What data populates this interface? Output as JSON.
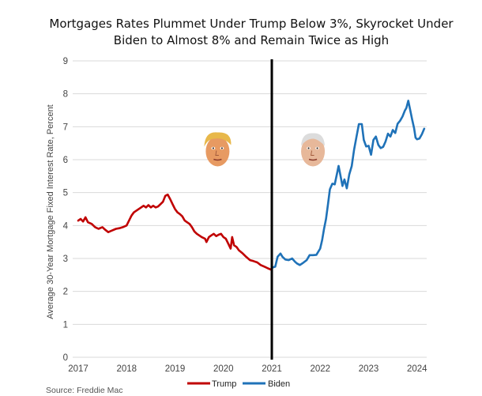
{
  "chart_data": {
    "type": "line",
    "title_lines": [
      "Mortgages Rates Plummet Under Trump Below 3%, Skyrocket Under",
      "Biden to Almost 8% and Remain Twice as High"
    ],
    "ylabel": "Average 30-Year Mortgage Fixed Interest Rate, Percent",
    "xlabel": "",
    "xlim": [
      2017,
      2024.2
    ],
    "ylim": [
      0,
      9
    ],
    "x_ticks": [
      2017,
      2018,
      2019,
      2020,
      2021,
      2022,
      2023,
      2024
    ],
    "x_tick_labels": [
      "2017",
      "2018",
      "2019",
      "2020",
      "2021",
      "2022",
      "2023",
      "2024"
    ],
    "y_ticks": [
      0,
      1,
      2,
      3,
      4,
      5,
      6,
      7,
      8,
      9
    ],
    "y_tick_labels": [
      "0",
      "1",
      "2",
      "3",
      "4",
      "5",
      "6",
      "7",
      "8",
      "9"
    ],
    "grid": true,
    "divider_x": 2021.0,
    "source": "Source: Freddie Mac",
    "annotations": [
      {
        "name": "trump-face",
        "x": 2019.88,
        "y": 6.3
      },
      {
        "name": "biden-face",
        "x": 2021.85,
        "y": 6.3
      }
    ],
    "series": [
      {
        "name": "Trump",
        "color": "#c00000",
        "points": [
          [
            2017.0,
            4.15
          ],
          [
            2017.05,
            4.2
          ],
          [
            2017.1,
            4.12
          ],
          [
            2017.15,
            4.25
          ],
          [
            2017.2,
            4.1
          ],
          [
            2017.28,
            4.05
          ],
          [
            2017.35,
            3.95
          ],
          [
            2017.42,
            3.9
          ],
          [
            2017.5,
            3.95
          ],
          [
            2017.55,
            3.88
          ],
          [
            2017.62,
            3.8
          ],
          [
            2017.7,
            3.85
          ],
          [
            2017.78,
            3.9
          ],
          [
            2017.85,
            3.92
          ],
          [
            2017.92,
            3.95
          ],
          [
            2018.0,
            4.0
          ],
          [
            2018.05,
            4.15
          ],
          [
            2018.1,
            4.3
          ],
          [
            2018.15,
            4.4
          ],
          [
            2018.2,
            4.45
          ],
          [
            2018.3,
            4.55
          ],
          [
            2018.35,
            4.6
          ],
          [
            2018.4,
            4.55
          ],
          [
            2018.45,
            4.62
          ],
          [
            2018.5,
            4.55
          ],
          [
            2018.55,
            4.6
          ],
          [
            2018.6,
            4.55
          ],
          [
            2018.65,
            4.58
          ],
          [
            2018.7,
            4.65
          ],
          [
            2018.75,
            4.72
          ],
          [
            2018.8,
            4.9
          ],
          [
            2018.85,
            4.94
          ],
          [
            2018.9,
            4.8
          ],
          [
            2018.95,
            4.65
          ],
          [
            2019.0,
            4.5
          ],
          [
            2019.05,
            4.4
          ],
          [
            2019.1,
            4.35
          ],
          [
            2019.15,
            4.28
          ],
          [
            2019.2,
            4.15
          ],
          [
            2019.25,
            4.1
          ],
          [
            2019.3,
            4.05
          ],
          [
            2019.35,
            3.95
          ],
          [
            2019.4,
            3.82
          ],
          [
            2019.45,
            3.75
          ],
          [
            2019.5,
            3.7
          ],
          [
            2019.55,
            3.65
          ],
          [
            2019.62,
            3.6
          ],
          [
            2019.65,
            3.5
          ],
          [
            2019.7,
            3.65
          ],
          [
            2019.75,
            3.7
          ],
          [
            2019.8,
            3.75
          ],
          [
            2019.85,
            3.68
          ],
          [
            2019.9,
            3.72
          ],
          [
            2019.95,
            3.75
          ],
          [
            2020.0,
            3.65
          ],
          [
            2020.05,
            3.6
          ],
          [
            2020.1,
            3.45
          ],
          [
            2020.15,
            3.3
          ],
          [
            2020.18,
            3.65
          ],
          [
            2020.22,
            3.4
          ],
          [
            2020.27,
            3.35
          ],
          [
            2020.32,
            3.25
          ],
          [
            2020.4,
            3.15
          ],
          [
            2020.47,
            3.05
          ],
          [
            2020.55,
            2.95
          ],
          [
            2020.62,
            2.92
          ],
          [
            2020.7,
            2.88
          ],
          [
            2020.77,
            2.8
          ],
          [
            2020.85,
            2.75
          ],
          [
            2020.92,
            2.7
          ],
          [
            2021.0,
            2.65
          ]
        ]
      },
      {
        "name": "Biden",
        "color": "#1f72b8",
        "points": [
          [
            2021.0,
            2.72
          ],
          [
            2021.07,
            2.75
          ],
          [
            2021.12,
            3.05
          ],
          [
            2021.18,
            3.15
          ],
          [
            2021.22,
            3.05
          ],
          [
            2021.28,
            2.97
          ],
          [
            2021.35,
            2.95
          ],
          [
            2021.42,
            3.0
          ],
          [
            2021.48,
            2.9
          ],
          [
            2021.52,
            2.85
          ],
          [
            2021.58,
            2.8
          ],
          [
            2021.65,
            2.87
          ],
          [
            2021.72,
            2.95
          ],
          [
            2021.78,
            3.1
          ],
          [
            2021.85,
            3.1
          ],
          [
            2021.92,
            3.11
          ],
          [
            2022.0,
            3.3
          ],
          [
            2022.04,
            3.56
          ],
          [
            2022.08,
            3.9
          ],
          [
            2022.12,
            4.2
          ],
          [
            2022.16,
            4.65
          ],
          [
            2022.2,
            5.1
          ],
          [
            2022.25,
            5.27
          ],
          [
            2022.3,
            5.25
          ],
          [
            2022.35,
            5.6
          ],
          [
            2022.38,
            5.81
          ],
          [
            2022.42,
            5.5
          ],
          [
            2022.46,
            5.2
          ],
          [
            2022.5,
            5.4
          ],
          [
            2022.55,
            5.13
          ],
          [
            2022.6,
            5.55
          ],
          [
            2022.65,
            5.8
          ],
          [
            2022.7,
            6.3
          ],
          [
            2022.75,
            6.7
          ],
          [
            2022.8,
            7.08
          ],
          [
            2022.86,
            7.08
          ],
          [
            2022.9,
            6.6
          ],
          [
            2022.95,
            6.4
          ],
          [
            2023.0,
            6.42
          ],
          [
            2023.05,
            6.15
          ],
          [
            2023.1,
            6.6
          ],
          [
            2023.15,
            6.7
          ],
          [
            2023.2,
            6.45
          ],
          [
            2023.25,
            6.35
          ],
          [
            2023.3,
            6.39
          ],
          [
            2023.35,
            6.55
          ],
          [
            2023.4,
            6.79
          ],
          [
            2023.45,
            6.7
          ],
          [
            2023.5,
            6.9
          ],
          [
            2023.55,
            6.81
          ],
          [
            2023.6,
            7.09
          ],
          [
            2023.65,
            7.18
          ],
          [
            2023.7,
            7.31
          ],
          [
            2023.75,
            7.49
          ],
          [
            2023.78,
            7.57
          ],
          [
            2023.82,
            7.79
          ],
          [
            2023.86,
            7.5
          ],
          [
            2023.9,
            7.22
          ],
          [
            2023.94,
            6.95
          ],
          [
            2023.97,
            6.67
          ],
          [
            2024.0,
            6.62
          ],
          [
            2024.05,
            6.64
          ],
          [
            2024.1,
            6.77
          ],
          [
            2024.15,
            6.94
          ]
        ]
      }
    ]
  }
}
